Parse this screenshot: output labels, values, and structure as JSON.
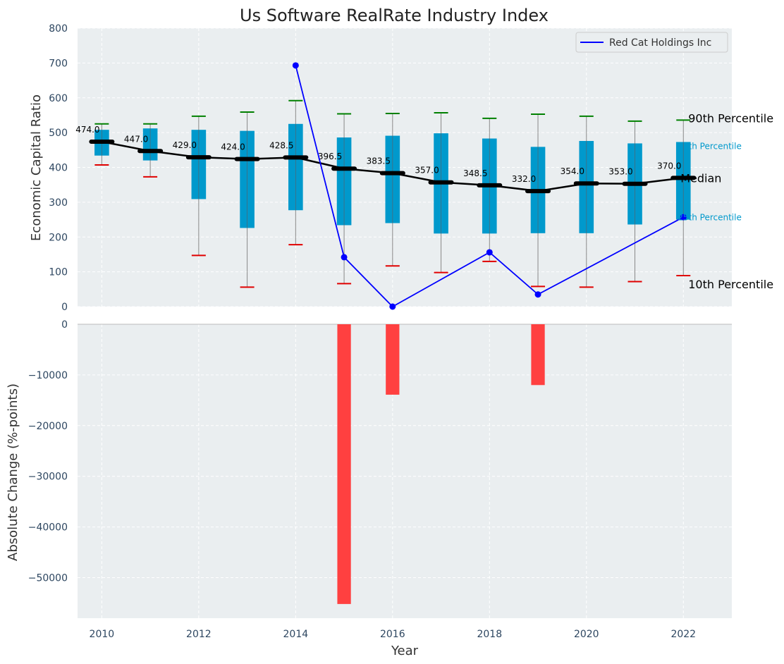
{
  "chart_data": [
    {
      "type": "box",
      "title": "Us Software RealRate Industry Index",
      "ylabel": "Economic Capital Ratio",
      "ylim": [
        0,
        800
      ],
      "yticks": [
        0,
        100,
        200,
        300,
        400,
        500,
        600,
        700,
        800
      ],
      "grid": true,
      "legend": {
        "position": "top-right",
        "entries": [
          "Red Cat Holdings Inc"
        ]
      },
      "x": [
        2010,
        2011,
        2012,
        2013,
        2014,
        2015,
        2016,
        2017,
        2018,
        2019,
        2020,
        2021,
        2022
      ],
      "median": [
        474.0,
        447.0,
        429.0,
        424.0,
        428.5,
        396.5,
        383.5,
        357.0,
        348.5,
        332.0,
        354.0,
        353.0,
        370.0
      ],
      "median_labels": [
        "474.0",
        "447.0",
        "429.0",
        "424.0",
        "428.5",
        "396.5",
        "383.5",
        "357.0",
        "348.5",
        "332.0",
        "354.0",
        "353.0",
        "370.0"
      ],
      "q1": [
        434,
        420,
        309,
        226,
        277,
        234,
        240,
        210,
        210,
        211,
        211,
        236,
        250
      ],
      "q3": [
        508,
        512,
        508,
        505,
        525,
        486,
        491,
        498,
        483,
        459,
        476,
        469,
        473
      ],
      "p10": [
        407,
        373,
        147,
        56,
        178,
        66,
        117,
        98,
        130,
        58,
        56,
        72,
        89
      ],
      "p90": [
        525,
        525,
        547,
        559,
        592,
        554,
        555,
        557,
        541,
        553,
        547,
        533,
        536
      ],
      "series": [
        {
          "name": "Red Cat Holdings Inc",
          "x": [
            2014,
            2015,
            2016,
            2018,
            2019,
            2022
          ],
          "values": [
            693,
            142,
            0,
            156,
            35,
            257
          ],
          "color": "#0000ff"
        }
      ],
      "annotations": [
        "90th Percentile",
        "75th Percentile",
        "Median",
        "25th Percentile",
        "10th Percentile"
      ],
      "colors": {
        "box": "#0099cc",
        "median": "#000000",
        "p90": "#008000",
        "p10": "#e00000",
        "background": "#eaeef0"
      }
    },
    {
      "type": "bar",
      "ylabel": "Absolute Change (%-points)",
      "xlabel": "Year",
      "ylim": [
        -58000,
        0
      ],
      "yticks": [
        0,
        -10000,
        -20000,
        -30000,
        -40000,
        -50000
      ],
      "ytick_labels": [
        "0",
        "−10000",
        "−20000",
        "−30000",
        "−40000",
        "−50000"
      ],
      "xticks": [
        2010,
        2012,
        2014,
        2016,
        2018,
        2020,
        2022
      ],
      "x": [
        2015,
        2016,
        2019
      ],
      "values": [
        -55200,
        -13900,
        -12000
      ],
      "color": "#ff4040"
    }
  ]
}
